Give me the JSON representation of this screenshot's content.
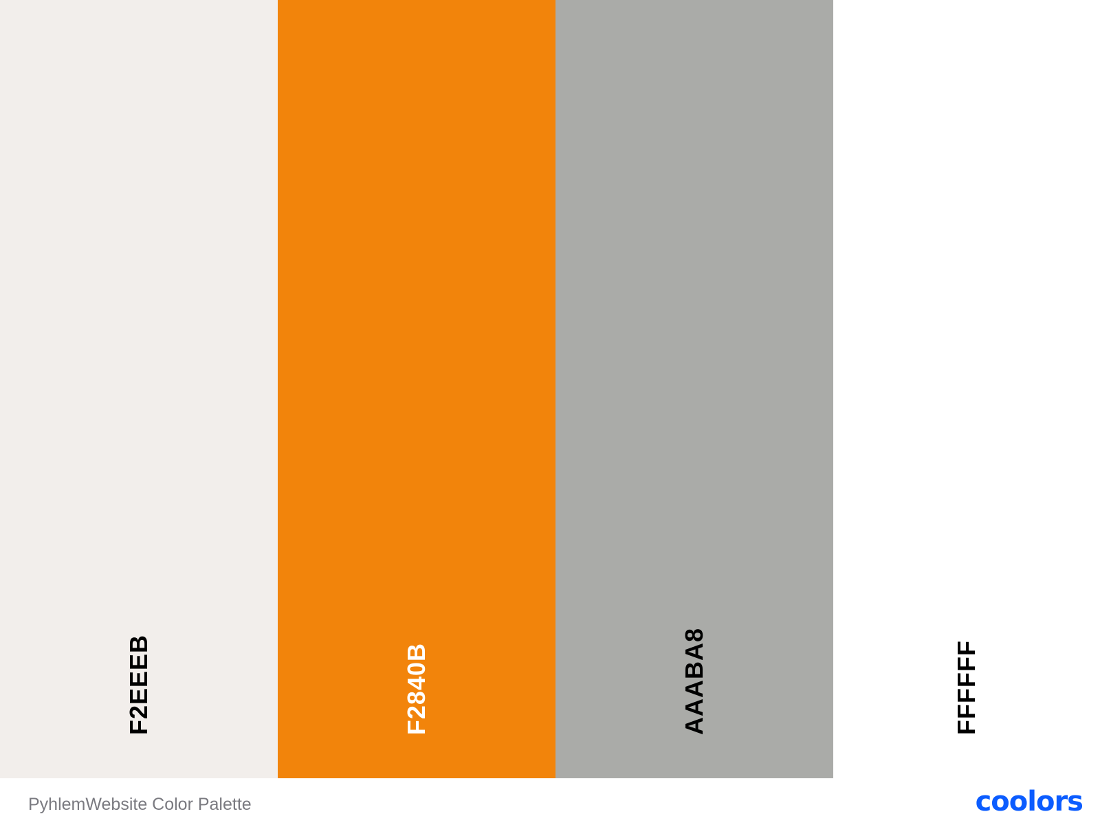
{
  "swatches": [
    {
      "hex": "F2EEEB",
      "color": "#F2EEEB",
      "text_color": "#000000"
    },
    {
      "hex": "F2840B",
      "color": "#F2840B",
      "text_color": "#FFFFFF"
    },
    {
      "hex": "AAABA8",
      "color": "#AAABA8",
      "text_color": "#000000"
    },
    {
      "hex": "FFFFFF",
      "color": "#FFFFFF",
      "text_color": "#000000"
    }
  ],
  "footer": {
    "title": "PyhlemWebsite Color Palette",
    "brand": "coolors",
    "brand_color": "#0B5CFF"
  }
}
